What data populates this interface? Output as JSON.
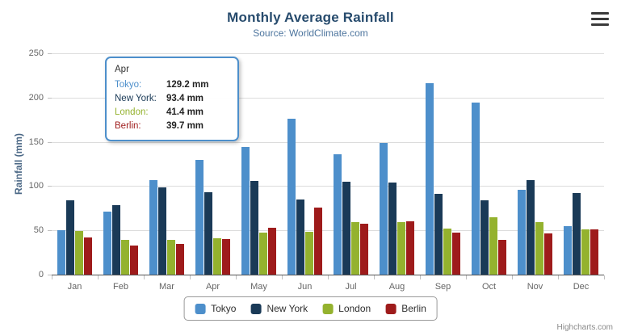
{
  "chart_data": {
    "type": "bar",
    "title": "Monthly Average Rainfall",
    "subtitle": "Source: WorldClimate.com",
    "xlabel": "",
    "ylabel": "Rainfall (mm)",
    "ylim": [
      0,
      250
    ],
    "ytick_step": 50,
    "grid": true,
    "legend_position": "bottom",
    "categories": [
      "Jan",
      "Feb",
      "Mar",
      "Apr",
      "May",
      "Jun",
      "Jul",
      "Aug",
      "Sep",
      "Oct",
      "Nov",
      "Dec"
    ],
    "series": [
      {
        "name": "Tokyo",
        "color": "#4d8fcb",
        "values": [
          49.9,
          71.5,
          106.4,
          129.2,
          144.0,
          176.0,
          135.6,
          148.5,
          216.4,
          194.1,
          95.6,
          54.4
        ]
      },
      {
        "name": "New York",
        "color": "#1a3a57",
        "values": [
          83.6,
          78.8,
          98.5,
          93.4,
          106.0,
          84.5,
          105.0,
          104.3,
          91.2,
          83.5,
          106.6,
          92.3
        ]
      },
      {
        "name": "London",
        "color": "#94b22e",
        "values": [
          48.9,
          38.8,
          39.3,
          41.4,
          47.0,
          48.3,
          59.0,
          59.6,
          52.4,
          65.2,
          59.3,
          51.2
        ]
      },
      {
        "name": "Berlin",
        "color": "#9e1b1b",
        "values": [
          42.4,
          33.2,
          34.5,
          39.7,
          52.6,
          75.5,
          57.4,
          60.4,
          47.6,
          39.1,
          46.8,
          51.1
        ]
      }
    ]
  },
  "tooltip": {
    "category": "Apr",
    "values": [
      "129.2 mm",
      "93.4 mm",
      "41.4 mm",
      "39.7 mm"
    ]
  },
  "menu_icon": "hamburger-icon",
  "credits": "Highcharts.com"
}
